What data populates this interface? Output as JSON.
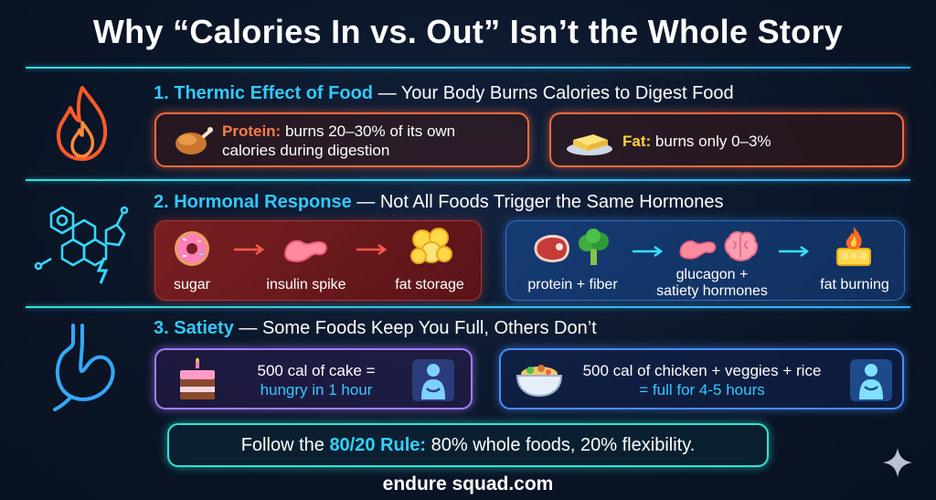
{
  "title": "Why “Calories In vs. Out” Isn’t the Whole Story",
  "sections": [
    {
      "heading_accent": "1. Thermic Effect of Food",
      "heading_rest": " — Your Body Burns Calories to Digest Food",
      "icon": "flame-icon",
      "cards": [
        {
          "label": "Protein:",
          "text": "burns 20–30% of its own",
          "text2": "calories during digestion",
          "icon": "roast-chicken-icon"
        },
        {
          "label": "Fat:",
          "text": "burns only 0–3%",
          "icon": "butter-icon"
        }
      ]
    },
    {
      "heading_accent": "2. Hormonal Response",
      "heading_rest": " — Not All Foods Trigger the Same Hormones",
      "icon": "hormone-molecule-icon",
      "flow_bad": [
        "sugar",
        "insulin spike",
        "fat storage"
      ],
      "flow_good": [
        "protein + fiber",
        "glucagon +",
        "satiety hormones",
        "fat burning"
      ]
    },
    {
      "heading_accent": "3. Satiety",
      "heading_rest": " — Some Foods Keep You Full, Others Don’t",
      "icon": "stomach-icon",
      "cards": [
        {
          "line1": "500 cal of cake =",
          "line2": "hungry in 1 hour",
          "icon": "cake-icon"
        },
        {
          "line1": "500 cal of chicken + veggies + rice",
          "line2": "= full for 4-5 hours",
          "icon": "bowl-icon"
        }
      ]
    }
  ],
  "rule": {
    "prefix": "Follow the ",
    "accent": "80/20 Rule:",
    "rest": " 80% whole foods, 20% flexibility."
  },
  "footer": "endure squad.com",
  "colors": {
    "accent_cyan": "#35c8ff",
    "orange": "#ff6a3d",
    "yellow": "#ffd23f",
    "purple": "#a47cff",
    "blue": "#4b8dff",
    "teal": "#2ee6d8"
  }
}
